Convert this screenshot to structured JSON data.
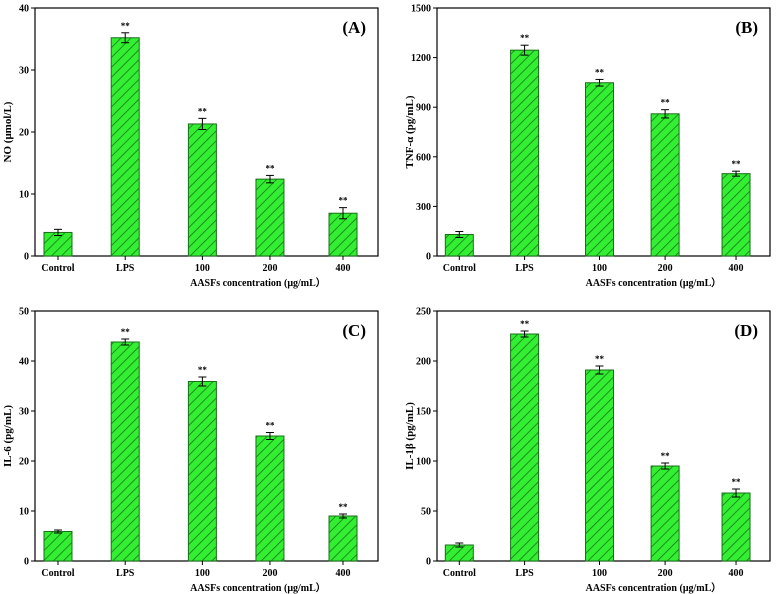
{
  "chart_data": [
    {
      "type": "bar",
      "panel_label": "(A)",
      "categories": [
        "Control",
        "LPS",
        "100",
        "200",
        "400"
      ],
      "values": [
        3.8,
        35.2,
        21.3,
        12.4,
        6.9
      ],
      "errors": [
        0.5,
        0.8,
        0.9,
        0.6,
        0.9
      ],
      "significance": [
        "",
        "**",
        "**",
        "**",
        "**"
      ],
      "ylabel": "NO (μmol/L)",
      "xlabel": "AASFs concentration (μg/mL）",
      "ylim": [
        0,
        40
      ],
      "yticks": [
        0,
        10,
        20,
        30,
        40
      ],
      "bar_color": "#33ee33",
      "grid": false
    },
    {
      "type": "bar",
      "panel_label": "(B)",
      "categories": [
        "Control",
        "LPS",
        "100",
        "200",
        "400"
      ],
      "values": [
        130,
        1245,
        1048,
        860,
        498
      ],
      "errors": [
        18,
        30,
        20,
        25,
        15
      ],
      "significance": [
        "",
        "**",
        "**",
        "**",
        "**"
      ],
      "ylabel": "TNF-α (pg/mL)",
      "xlabel": "AASFs concentration (μg/mL）",
      "ylim": [
        0,
        1500
      ],
      "yticks": [
        0,
        300,
        600,
        900,
        1200,
        1500
      ],
      "bar_color": "#33ee33",
      "grid": false
    },
    {
      "type": "bar",
      "panel_label": "(C)",
      "categories": [
        "Control",
        "LPS",
        "100",
        "200",
        "400"
      ],
      "values": [
        5.9,
        43.8,
        35.9,
        25.0,
        9.0
      ],
      "errors": [
        0.3,
        0.6,
        0.9,
        0.7,
        0.4
      ],
      "significance": [
        "",
        "**",
        "**",
        "**",
        "**"
      ],
      "ylabel": "IL-6 (pg/mL)",
      "xlabel": "AASFs concentration (μg/mL）",
      "ylim": [
        0,
        50
      ],
      "yticks": [
        0,
        10,
        20,
        30,
        40,
        50
      ],
      "bar_color": "#33ee33",
      "grid": false
    },
    {
      "type": "bar",
      "panel_label": "(D)",
      "categories": [
        "Control",
        "LPS",
        "100",
        "200",
        "400"
      ],
      "values": [
        16,
        227,
        191,
        95,
        68
      ],
      "errors": [
        2,
        3,
        4,
        3,
        4
      ],
      "significance": [
        "",
        "**",
        "**",
        "**",
        "**"
      ],
      "ylabel": "IL-1β (pg/mL)",
      "xlabel": "AASFs concentration (μg/mL）",
      "ylim": [
        0,
        250
      ],
      "yticks": [
        0,
        50,
        100,
        150,
        200,
        250
      ],
      "bar_color": "#33ee33",
      "grid": false
    }
  ]
}
